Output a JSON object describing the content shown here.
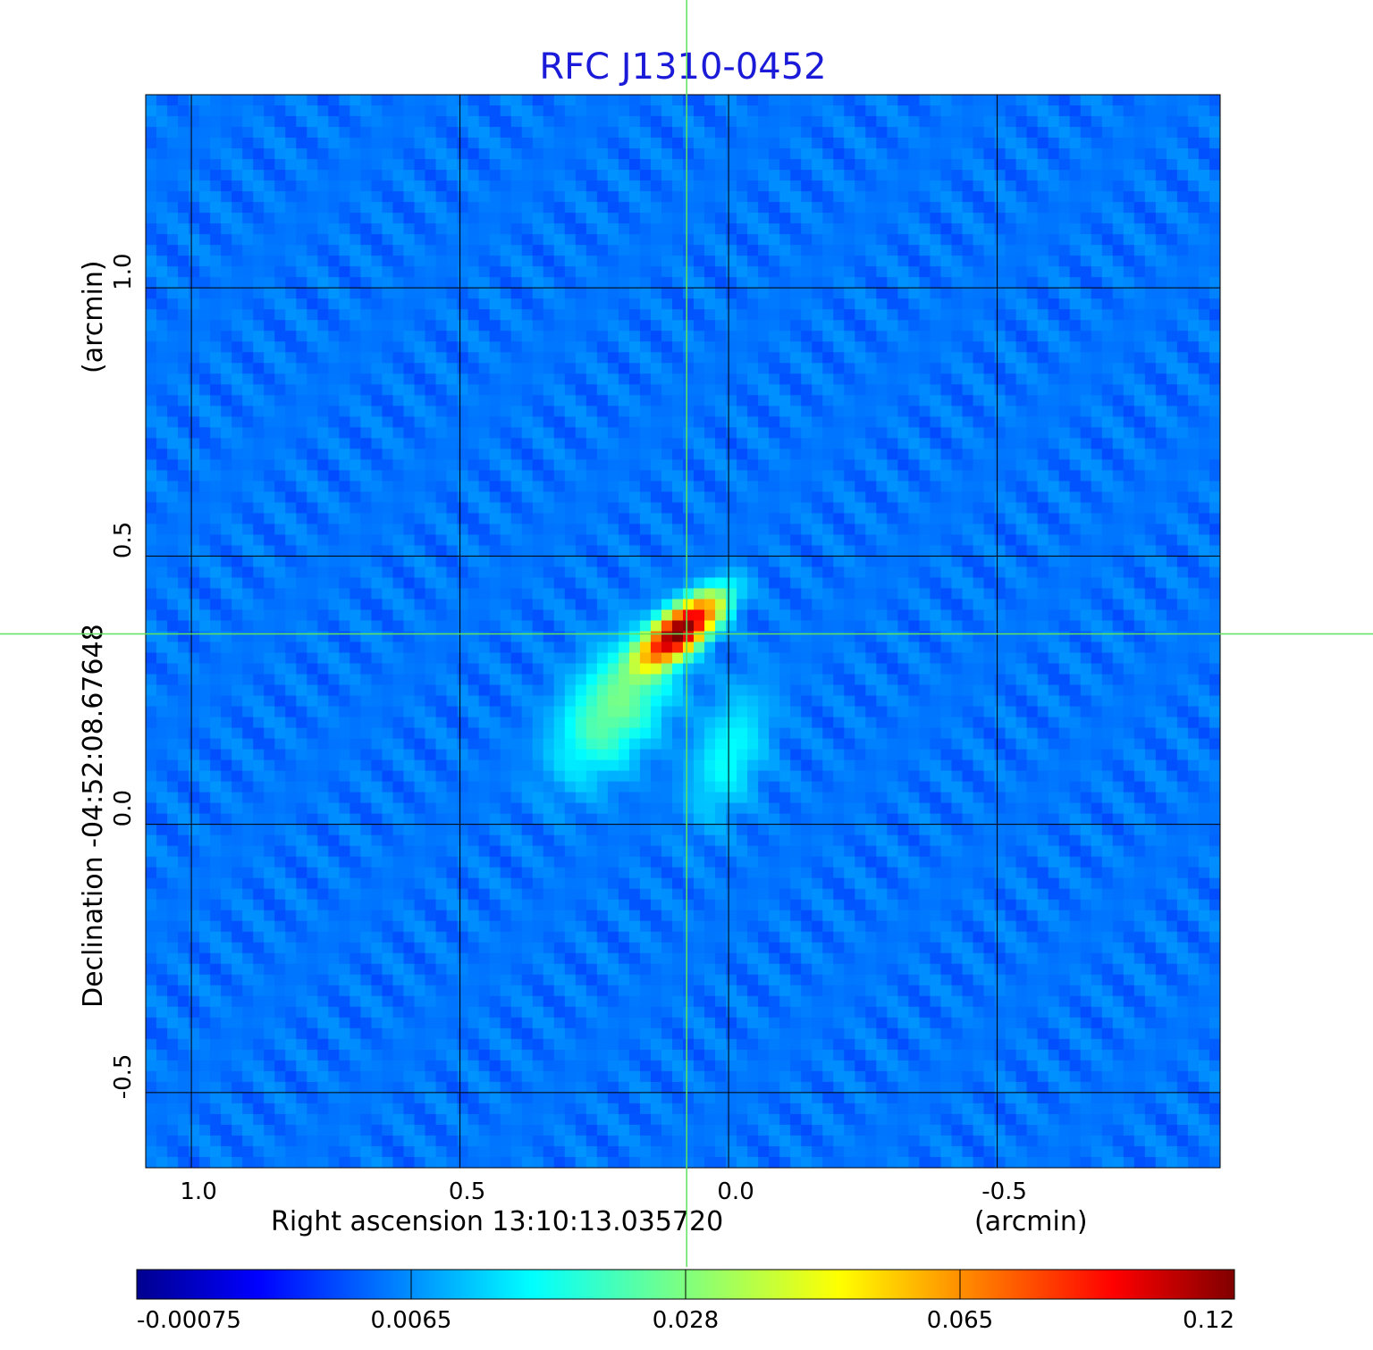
{
  "chart_data": {
    "type": "heatmap",
    "title": "RFC J1310-0452",
    "x_axis": {
      "label_main": "Right ascension  13:10:13.035720",
      "label_unit": "(arcmin)",
      "ticks": [
        1.0,
        0.5,
        0.0,
        -0.5
      ],
      "tick_labels": [
        "1.0",
        "0.5",
        "0.0",
        "-0.5"
      ],
      "range": [
        1.085,
        -0.915
      ],
      "reversed": true
    },
    "y_axis": {
      "label_main": "Declination  -04:52:08.67648",
      "label_unit": "(arcmin)",
      "ticks": [
        1.0,
        0.5,
        0.0,
        -0.5
      ],
      "tick_labels": [
        "1.0",
        "0.5",
        "0.0",
        "-0.5"
      ],
      "range": [
        -0.64,
        1.36
      ]
    },
    "grid": true,
    "crosshair": {
      "x": 0.078,
      "y": 0.355,
      "color": "#5fe35f"
    },
    "colorbar": {
      "colormap": "jet",
      "ticks": [
        -0.00075,
        0.0065,
        0.028,
        0.065,
        0.12
      ],
      "tick_labels": [
        "-0.00075",
        "0.0065",
        "0.028",
        "0.065",
        "0.12"
      ],
      "range": [
        -0.00075,
        0.12
      ]
    },
    "sources": [
      {
        "x": 0.09,
        "y": 0.36,
        "peak": 0.12,
        "sigma_major": 0.055,
        "sigma_minor": 0.022,
        "angle_deg": -40
      },
      {
        "x": 0.21,
        "y": 0.22,
        "peak": 0.018,
        "sigma_major": 0.09,
        "sigma_minor": 0.05,
        "angle_deg": -55
      },
      {
        "x": 0.0,
        "y": 0.13,
        "peak": 0.008,
        "sigma_major": 0.08,
        "sigma_minor": 0.04,
        "angle_deg": -70
      }
    ],
    "background_level": 0.0012
  }
}
